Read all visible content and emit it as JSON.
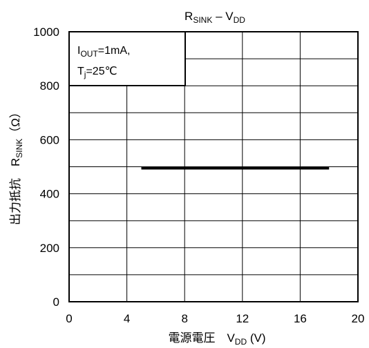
{
  "chart_data": {
    "type": "line",
    "title": {
      "main": "R",
      "main_sub": "SINK",
      "sep": " – V",
      "sep_sub": "DD"
    },
    "xlabel": {
      "prefix": "電源電圧　V",
      "prefix_sub": "DD",
      "unit": " (V)"
    },
    "ylabel": {
      "prefix": "出力抵抗　R",
      "prefix_sub": "SINK",
      "unit": "（Ω）"
    },
    "annotation": {
      "line1": {
        "pre": "I",
        "sub": "OUT",
        "post": "=1mA,"
      },
      "line2": {
        "pre": "T",
        "sub": "j",
        "post": "=25℃"
      }
    },
    "xlim": [
      0,
      20
    ],
    "ylim": [
      0,
      1000
    ],
    "x_ticks": [
      "0",
      "4",
      "8",
      "12",
      "16",
      "20"
    ],
    "y_ticks": [
      "0",
      "200",
      "400",
      "600",
      "800",
      "1000"
    ],
    "x_grid_step": 4,
    "y_grid_step": 100,
    "grid": true,
    "legend": "none",
    "series": [
      {
        "x": [
          5,
          18
        ],
        "y": [
          495,
          495
        ],
        "color": "#000000"
      }
    ]
  }
}
